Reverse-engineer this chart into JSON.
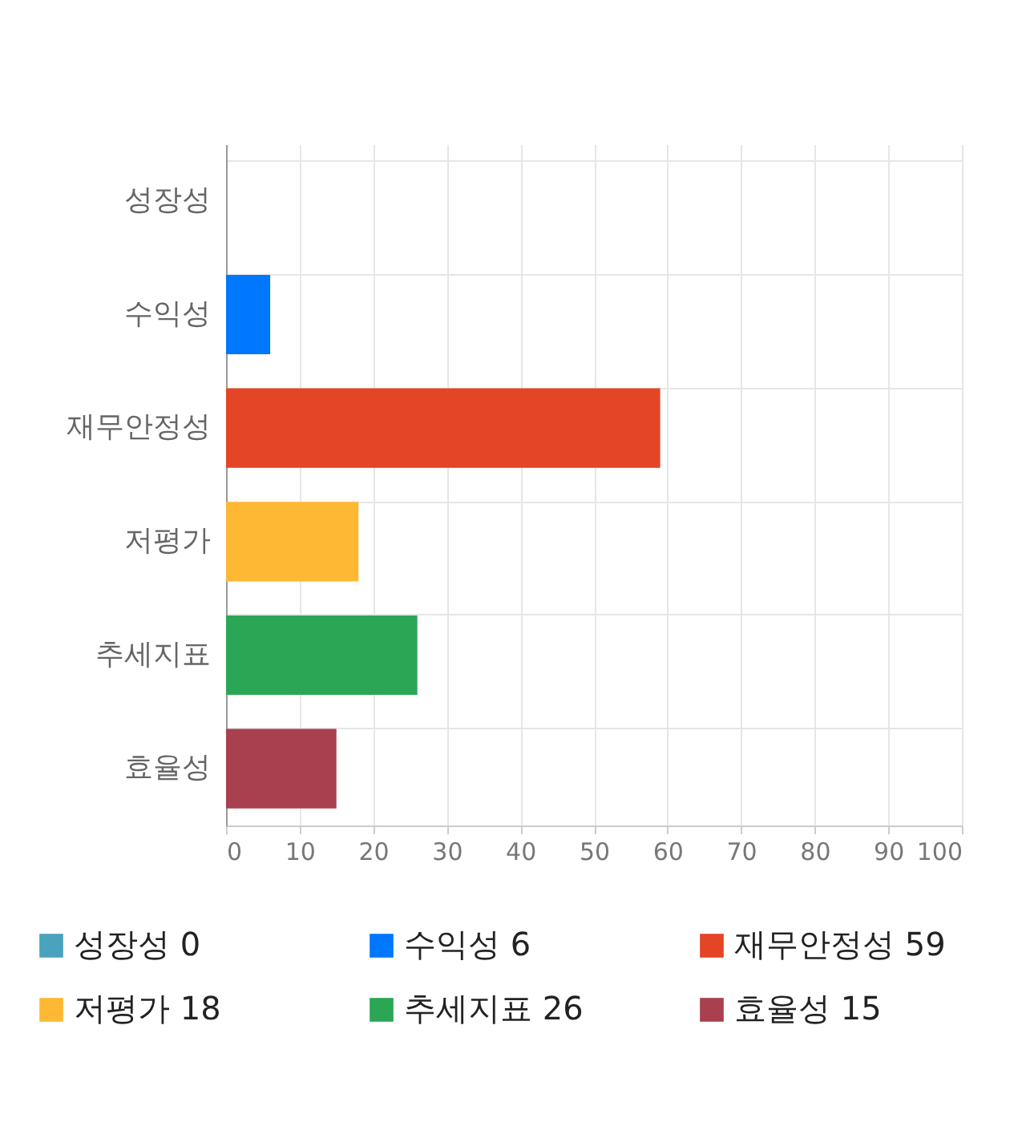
{
  "chart_data": {
    "type": "bar",
    "orientation": "horizontal",
    "categories": [
      "성장성",
      "수익성",
      "재무안정성",
      "저평가",
      "추세지표",
      "효율성"
    ],
    "series": [
      {
        "name": "성장성 0",
        "color": "#4aa3bd",
        "values": [
          0,
          null,
          null,
          null,
          null,
          null
        ]
      },
      {
        "name": "수익성 6",
        "color": "#0077ff",
        "values": [
          null,
          6,
          null,
          null,
          null,
          null
        ]
      },
      {
        "name": "재무안정성 59",
        "color": "#e34526",
        "values": [
          null,
          null,
          59,
          null,
          null,
          null
        ]
      },
      {
        "name": "저평가 18",
        "color": "#ffb833",
        "values": [
          null,
          null,
          null,
          18,
          null,
          null
        ]
      },
      {
        "name": "추세지표 26",
        "color": "#2ba655",
        "values": [
          null,
          null,
          null,
          null,
          26,
          null
        ]
      },
      {
        "name": "효율성 15",
        "color": "#a8404f",
        "values": [
          null,
          null,
          null,
          null,
          null,
          15
        ]
      }
    ],
    "xlim": [
      0,
      100
    ],
    "xticks": [
      0,
      10,
      20,
      30,
      40,
      50,
      60,
      70,
      80,
      90,
      100
    ],
    "grid": true,
    "legend": "bottom"
  }
}
